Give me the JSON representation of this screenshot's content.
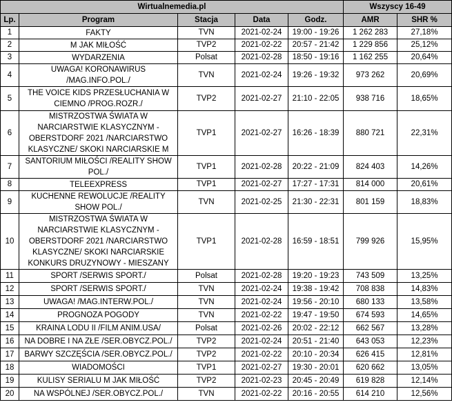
{
  "header": {
    "source": "Wirtualnemedia.pl",
    "group": "Wszyscy 16-49",
    "columns": [
      "Lp.",
      "Program",
      "Stacja",
      "Data",
      "Godz.",
      "AMR",
      "SHR %"
    ]
  },
  "rows": [
    {
      "lp": "1",
      "program": "FAKTY",
      "station": "TVN",
      "date": "2021-02-24",
      "time": "19:00 - 19:26",
      "amr": "1 262 283",
      "shr": "27,18%"
    },
    {
      "lp": "2",
      "program": "M JAK MIŁOŚĆ",
      "station": "TVP2",
      "date": "2021-02-22",
      "time": "20:57 - 21:42",
      "amr": "1 229 856",
      "shr": "25,12%"
    },
    {
      "lp": "3",
      "program": "WYDARZENIA",
      "station": "Polsat",
      "date": "2021-02-28",
      "time": "18:50 - 19:16",
      "amr": "1 162 255",
      "shr": "20,64%"
    },
    {
      "lp": "4",
      "program": "UWAGA! KORONAWIRUS /MAG.INFO.POL./",
      "station": "TVN",
      "date": "2021-02-24",
      "time": "19:26 - 19:32",
      "amr": "973 262",
      "shr": "20,69%"
    },
    {
      "lp": "5",
      "program": "THE VOICE KIDS PRZESŁUCHANIA W CIEMNO /PROG.ROZR./",
      "station": "TVP2",
      "date": "2021-02-27",
      "time": "21:10 - 22:05",
      "amr": "938 716",
      "shr": "18,65%"
    },
    {
      "lp": "6",
      "program": "MISTRZOSTWA ŚWIATA W NARCIARSTWIE KLASYCZNYM - OBERSTDORF 2021 /NARCIARSTWO KLASYCZNE/ SKOKI NARCIARSKIE M",
      "station": "TVP1",
      "date": "2021-02-27",
      "time": "16:26 - 18:39",
      "amr": "880 721",
      "shr": "22,31%"
    },
    {
      "lp": "7",
      "program": "SANTORIUM MIŁOŚCI /REALITY SHOW POL./",
      "station": "TVP1",
      "date": "2021-02-28",
      "time": "20:22 - 21:09",
      "amr": "824 403",
      "shr": "14,26%"
    },
    {
      "lp": "8",
      "program": "TELEEXPRESS",
      "station": "TVP1",
      "date": "2021-02-27",
      "time": "17:27 - 17:31",
      "amr": "814 000",
      "shr": "20,61%"
    },
    {
      "lp": "9",
      "program": "KUCHENNE REWOLUCJE /REALITY SHOW POL./",
      "station": "TVN",
      "date": "2021-02-25",
      "time": "21:30 - 22:31",
      "amr": "801 159",
      "shr": "18,83%"
    },
    {
      "lp": "10",
      "program": "MISTRZOSTWA ŚWIATA W NARCIARSTWIE KLASYCZNYM - OBERSTDORF 2021 /NARCIARSTWO KLASYCZNE/ SKOKI NARCIARSKIE KONKURS DRUZYNOWY - MIESZANY",
      "station": "TVP1",
      "date": "2021-02-28",
      "time": "16:59 - 18:51",
      "amr": "799 926",
      "shr": "15,95%"
    },
    {
      "lp": "11",
      "program": "SPORT /SERWIS SPORT./",
      "station": "Polsat",
      "date": "2021-02-28",
      "time": "19:20 - 19:23",
      "amr": "743 509",
      "shr": "13,25%"
    },
    {
      "lp": "12",
      "program": "SPORT /SERWIS SPORT./",
      "station": "TVN",
      "date": "2021-02-24",
      "time": "19:38 - 19:42",
      "amr": "708 838",
      "shr": "14,83%"
    },
    {
      "lp": "13",
      "program": "UWAGA! /MAG.INTERW.POL./",
      "station": "TVN",
      "date": "2021-02-24",
      "time": "19:56 - 20:10",
      "amr": "680 133",
      "shr": "13,58%"
    },
    {
      "lp": "14",
      "program": "PROGNOZA POGODY",
      "station": "TVN",
      "date": "2021-02-22",
      "time": "19:47 - 19:50",
      "amr": "674 593",
      "shr": "14,65%"
    },
    {
      "lp": "15",
      "program": "KRAINA LODU II /FILM ANIM.USA/",
      "station": "Polsat",
      "date": "2021-02-26",
      "time": "20:02 - 22:12",
      "amr": "662 567",
      "shr": "13,28%"
    },
    {
      "lp": "16",
      "program": "NA DOBRE I NA ZŁE /SER.OBYCZ.POL./",
      "station": "TVP2",
      "date": "2021-02-24",
      "time": "20:51 - 21:40",
      "amr": "643 053",
      "shr": "12,23%"
    },
    {
      "lp": "17",
      "program": "BARWY SZCZĘŚCIA /SER.OBYCZ.POL./",
      "station": "TVP2",
      "date": "2021-02-22",
      "time": "20:10 - 20:34",
      "amr": "626 415",
      "shr": "12,81%"
    },
    {
      "lp": "18",
      "program": "WIADOMOŚCI",
      "station": "TVP1",
      "date": "2021-02-27",
      "time": "19:30 - 20:01",
      "amr": "620 662",
      "shr": "13,05%"
    },
    {
      "lp": "19",
      "program": "KULISY SERIALU M JAK MIŁOŚĆ",
      "station": "TVP2",
      "date": "2021-02-23",
      "time": "20:45 - 20:49",
      "amr": "619 828",
      "shr": "12,14%"
    },
    {
      "lp": "20",
      "program": "NA WSPÓLNEJ /SER.OBYCZ.POL./",
      "station": "TVN",
      "date": "2021-02-22",
      "time": "20:16 - 20:55",
      "amr": "614 210",
      "shr": "12,56%"
    }
  ]
}
